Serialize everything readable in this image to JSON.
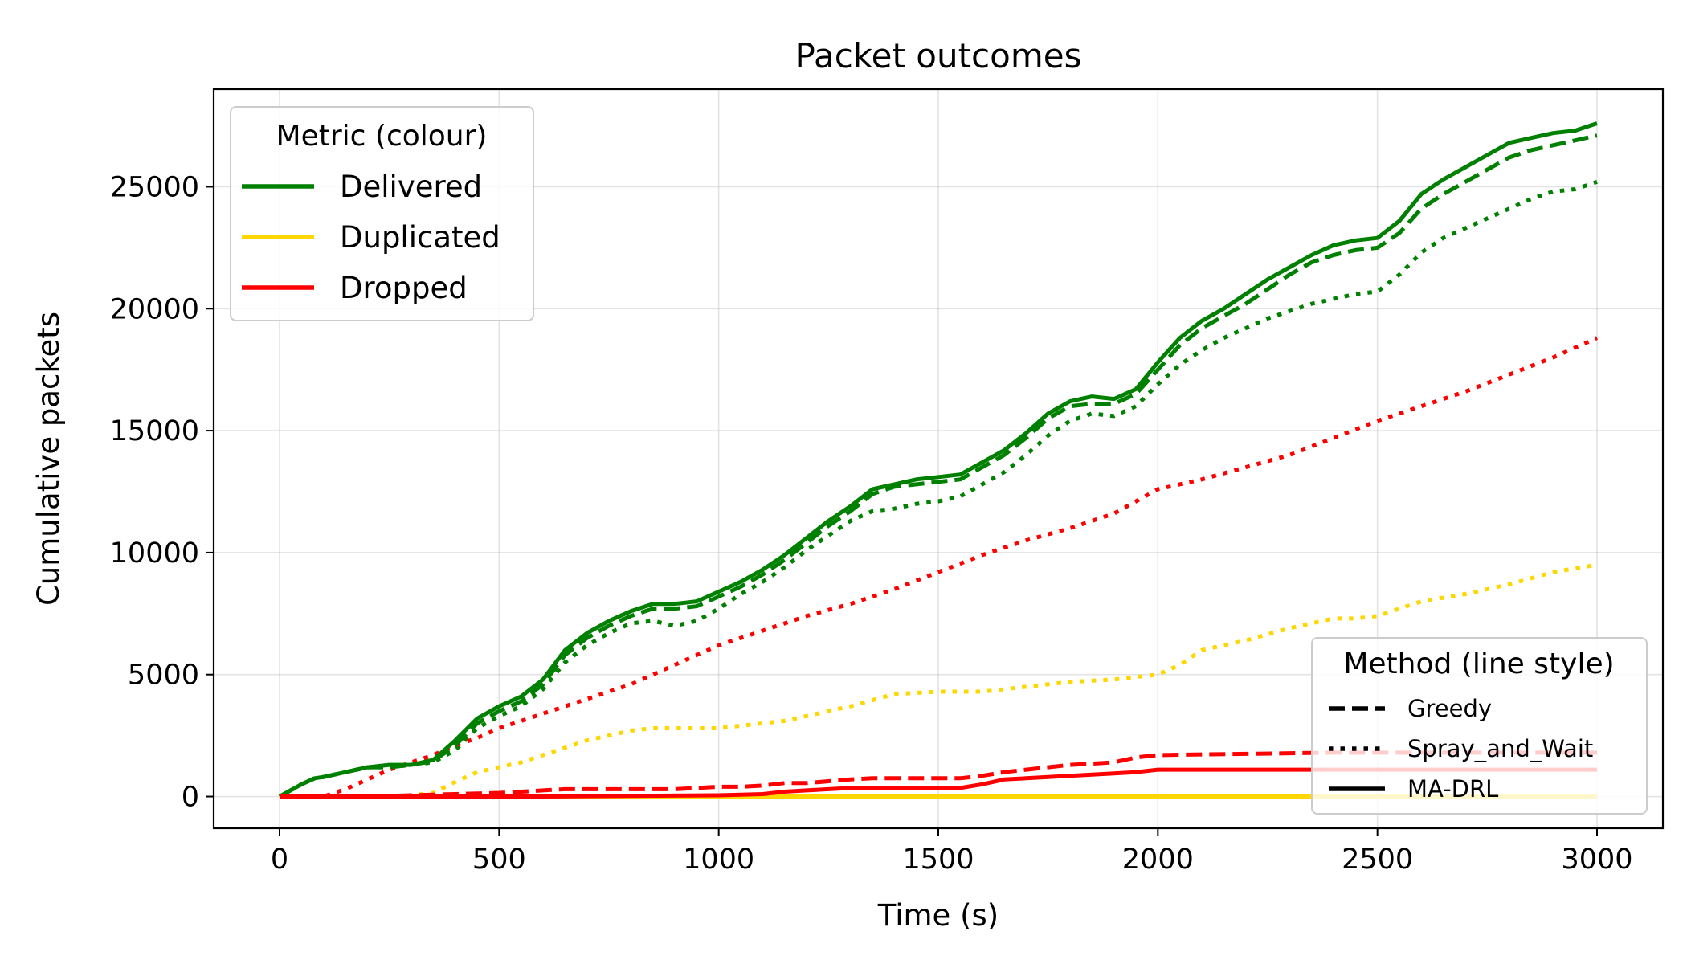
{
  "chart_data": {
    "type": "line",
    "title": "Packet outcomes",
    "xlabel": "Time (s)",
    "ylabel": "Cumulative packets",
    "xlim": [
      -150,
      3150
    ],
    "ylim": [
      -1300,
      29000
    ],
    "xticks": [
      0,
      500,
      1000,
      1500,
      2000,
      2500,
      3000
    ],
    "xtick_labels": [
      "0",
      "500",
      "1000",
      "1500",
      "2000",
      "2500",
      "3000"
    ],
    "yticks": [
      0,
      5000,
      10000,
      15000,
      20000,
      25000
    ],
    "ytick_labels": [
      "0",
      "5000",
      "10000",
      "15000",
      "20000",
      "25000"
    ],
    "grid": true,
    "colors": {
      "Delivered": "#008000",
      "Duplicated": "#FFD700",
      "Dropped": "#FF0000"
    },
    "legend_metric": {
      "title": "Metric (colour)",
      "placement": "top-left",
      "entries": [
        {
          "label": "Delivered",
          "color": "#008000"
        },
        {
          "label": "Duplicated",
          "color": "#FFD700"
        },
        {
          "label": "Dropped",
          "color": "#FF0000"
        }
      ]
    },
    "legend_method": {
      "title": "Method (line style)",
      "placement": "bottom-right",
      "entries": [
        {
          "label": "Greedy",
          "style": "dashed"
        },
        {
          "label": "Spray_and_Wait",
          "style": "dotted"
        },
        {
          "label": "MA-DRL",
          "style": "solid"
        }
      ]
    },
    "series": [
      {
        "metric": "Delivered",
        "method": "MA-DRL",
        "x": [
          0,
          50,
          80,
          100,
          150,
          200,
          250,
          300,
          350,
          400,
          450,
          500,
          550,
          600,
          650,
          700,
          750,
          800,
          850,
          900,
          950,
          1000,
          1050,
          1100,
          1150,
          1200,
          1250,
          1300,
          1350,
          1400,
          1450,
          1500,
          1550,
          1600,
          1650,
          1700,
          1750,
          1800,
          1850,
          1900,
          1950,
          2000,
          2050,
          2100,
          2150,
          2200,
          2250,
          2300,
          2350,
          2400,
          2450,
          2500,
          2550,
          2600,
          2650,
          2700,
          2750,
          2800,
          2850,
          2900,
          2950,
          3000
        ],
        "y": [
          0,
          500,
          750,
          800,
          1000,
          1200,
          1300,
          1300,
          1500,
          2300,
          3200,
          3700,
          4100,
          4800,
          6000,
          6700,
          7200,
          7600,
          7900,
          7900,
          8000,
          8400,
          8800,
          9300,
          9900,
          10600,
          11300,
          11900,
          12600,
          12800,
          13000,
          13100,
          13200,
          13700,
          14200,
          14900,
          15700,
          16200,
          16400,
          16300,
          16700,
          17800,
          18800,
          19500,
          20000,
          20600,
          21200,
          21700,
          22200,
          22600,
          22800,
          22900,
          23600,
          24700,
          25300,
          25800,
          26300,
          26800,
          27000,
          27200,
          27300,
          27600
        ]
      },
      {
        "metric": "Delivered",
        "method": "Greedy",
        "x": [
          0,
          50,
          80,
          100,
          150,
          200,
          250,
          300,
          350,
          400,
          450,
          500,
          550,
          600,
          650,
          700,
          750,
          800,
          850,
          900,
          950,
          1000,
          1050,
          1100,
          1150,
          1200,
          1250,
          1300,
          1350,
          1400,
          1450,
          1500,
          1550,
          1600,
          1650,
          1700,
          1750,
          1800,
          1850,
          1900,
          1950,
          2000,
          2050,
          2100,
          2150,
          2200,
          2250,
          2300,
          2350,
          2400,
          2450,
          2500,
          2550,
          2600,
          2650,
          2700,
          2750,
          2800,
          2850,
          2900,
          2950,
          3000
        ],
        "y": [
          0,
          500,
          750,
          800,
          1000,
          1200,
          1200,
          1300,
          1450,
          2100,
          3000,
          3500,
          3900,
          4600,
          5800,
          6500,
          7000,
          7400,
          7700,
          7700,
          7800,
          8200,
          8600,
          9100,
          9700,
          10400,
          11100,
          11700,
          12400,
          12700,
          12800,
          12900,
          13000,
          13500,
          14000,
          14700,
          15500,
          16000,
          16100,
          16100,
          16500,
          17500,
          18500,
          19200,
          19700,
          20200,
          20800,
          21400,
          21900,
          22200,
          22400,
          22500,
          23100,
          24100,
          24700,
          25200,
          25700,
          26200,
          26500,
          26700,
          26900,
          27100
        ]
      },
      {
        "metric": "Delivered",
        "method": "Spray_and_Wait",
        "x": [
          0,
          50,
          80,
          100,
          150,
          200,
          250,
          300,
          350,
          400,
          450,
          500,
          550,
          600,
          650,
          700,
          750,
          800,
          850,
          900,
          950,
          1000,
          1050,
          1100,
          1150,
          1200,
          1250,
          1300,
          1350,
          1400,
          1450,
          1500,
          1550,
          1600,
          1650,
          1700,
          1750,
          1800,
          1850,
          1900,
          1950,
          2000,
          2050,
          2100,
          2150,
          2200,
          2250,
          2300,
          2350,
          2400,
          2450,
          2500,
          2550,
          2600,
          2650,
          2700,
          2750,
          2800,
          2850,
          2900,
          2950,
          3000
        ],
        "y": [
          0,
          500,
          750,
          800,
          1000,
          1200,
          1200,
          1300,
          1400,
          1900,
          2800,
          3300,
          3700,
          4400,
          5500,
          6200,
          6700,
          7100,
          7200,
          7000,
          7200,
          7700,
          8300,
          8800,
          9400,
          10100,
          10700,
          11300,
          11700,
          11800,
          12000,
          12100,
          12300,
          12800,
          13300,
          14000,
          14800,
          15400,
          15700,
          15600,
          16000,
          16900,
          17700,
          18300,
          18800,
          19200,
          19600,
          19900,
          20200,
          20400,
          20600,
          20700,
          21400,
          22300,
          22900,
          23300,
          23700,
          24100,
          24500,
          24800,
          24900,
          25200
        ]
      },
      {
        "metric": "Duplicated",
        "method": "Spray_and_Wait",
        "x": [
          0,
          250,
          300,
          350,
          400,
          450,
          500,
          550,
          600,
          650,
          700,
          750,
          800,
          850,
          900,
          950,
          1000,
          1100,
          1150,
          1200,
          1300,
          1400,
          1500,
          1600,
          1700,
          1800,
          1900,
          1950,
          2000,
          2050,
          2100,
          2200,
          2300,
          2400,
          2450,
          2500,
          2550,
          2600,
          2700,
          2800,
          2900,
          3000
        ],
        "y": [
          0,
          0,
          50,
          150,
          600,
          1000,
          1200,
          1400,
          1700,
          2000,
          2300,
          2500,
          2700,
          2800,
          2800,
          2800,
          2800,
          3000,
          3100,
          3300,
          3700,
          4200,
          4300,
          4300,
          4500,
          4700,
          4800,
          4900,
          5000,
          5400,
          6000,
          6400,
          6900,
          7300,
          7300,
          7400,
          7700,
          8000,
          8300,
          8700,
          9200,
          9500
        ]
      },
      {
        "metric": "Duplicated",
        "method": "Greedy",
        "x": [
          0,
          3000
        ],
        "y": [
          0,
          0
        ]
      },
      {
        "metric": "Duplicated",
        "method": "MA-DRL",
        "x": [
          0,
          3000
        ],
        "y": [
          0,
          0
        ]
      },
      {
        "metric": "Dropped",
        "method": "Spray_and_Wait",
        "x": [
          0,
          100,
          150,
          200,
          250,
          300,
          350,
          400,
          450,
          500,
          550,
          600,
          650,
          700,
          750,
          800,
          850,
          900,
          950,
          1000,
          1050,
          1100,
          1150,
          1200,
          1300,
          1400,
          1500,
          1600,
          1700,
          1800,
          1900,
          2000,
          2100,
          2200,
          2300,
          2400,
          2500,
          2600,
          2700,
          2800,
          2900,
          3000
        ],
        "y": [
          0,
          0,
          300,
          700,
          1100,
          1400,
          1700,
          2100,
          2400,
          2800,
          3100,
          3400,
          3700,
          4000,
          4300,
          4600,
          5000,
          5400,
          5800,
          6200,
          6500,
          6800,
          7100,
          7400,
          7900,
          8500,
          9200,
          9900,
          10500,
          11000,
          11600,
          12600,
          13000,
          13500,
          14000,
          14700,
          15400,
          16000,
          16600,
          17300,
          18000,
          18800
        ]
      },
      {
        "metric": "Dropped",
        "method": "Greedy",
        "x": [
          0,
          200,
          300,
          400,
          500,
          550,
          600,
          650,
          700,
          900,
          950,
          1000,
          1050,
          1100,
          1150,
          1200,
          1300,
          1350,
          1400,
          1550,
          1600,
          1650,
          1700,
          1750,
          1800,
          1900,
          1950,
          2000,
          2200,
          2400,
          2500,
          3000
        ],
        "y": [
          0,
          0,
          50,
          100,
          150,
          200,
          250,
          300,
          300,
          300,
          350,
          400,
          400,
          450,
          550,
          550,
          700,
          750,
          750,
          750,
          850,
          1000,
          1100,
          1200,
          1300,
          1400,
          1600,
          1700,
          1750,
          1800,
          1800,
          1800
        ]
      },
      {
        "metric": "Dropped",
        "method": "MA-DRL",
        "x": [
          0,
          600,
          1000,
          1100,
          1150,
          1200,
          1250,
          1300,
          1400,
          1550,
          1600,
          1650,
          1700,
          1750,
          1800,
          1900,
          1950,
          2000,
          2500,
          3000
        ],
        "y": [
          0,
          0,
          50,
          100,
          200,
          250,
          300,
          350,
          350,
          350,
          500,
          700,
          750,
          800,
          850,
          950,
          1000,
          1100,
          1100,
          1100
        ]
      }
    ]
  }
}
